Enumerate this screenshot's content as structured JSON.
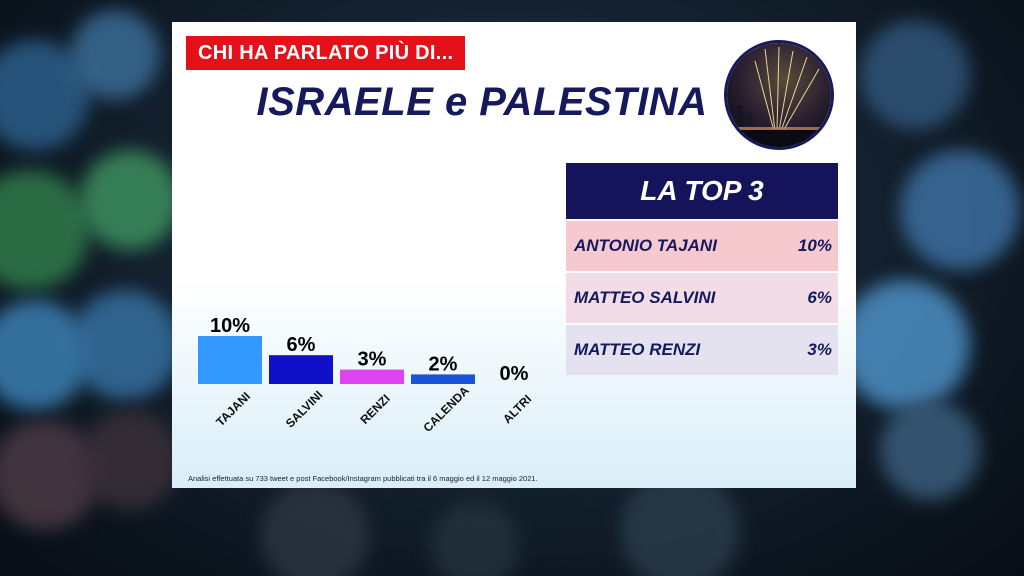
{
  "header": {
    "kicker": "CHI HA PARLATO PIÙ DI...",
    "headline": "ISRAELE e PALESTINA"
  },
  "top3": {
    "title": "LA TOP 3",
    "rows": [
      {
        "name": "ANTONIO TAJANI",
        "value": "10%"
      },
      {
        "name": "MATTEO SALVINI",
        "value": "6%"
      },
      {
        "name": "MATTEO RENZI",
        "value": "3%"
      }
    ]
  },
  "footnote": "Analisi effettuata su 733 tweet e post Facebook/Instagram pubblicati tra il 6 maggio ed il 12 maggio 2021.",
  "colors": {
    "kicker_bg": "#e4111a",
    "navy": "#16195c",
    "tajani": "#3399ff",
    "salvini": "#1010c8",
    "renzi": "#dd44ee",
    "calenda": "#1a55d8",
    "altri": "#888888"
  },
  "chart_data": {
    "type": "bar",
    "categories": [
      "TAJANI",
      "SALVINI",
      "RENZI",
      "CALENDA",
      "ALTRI"
    ],
    "values": [
      10,
      6,
      3,
      2,
      0
    ],
    "labels": [
      "10%",
      "6%",
      "3%",
      "2%",
      "0%"
    ],
    "unit": "%",
    "ylim": [
      0,
      10
    ],
    "grid": false,
    "legend": "none"
  }
}
